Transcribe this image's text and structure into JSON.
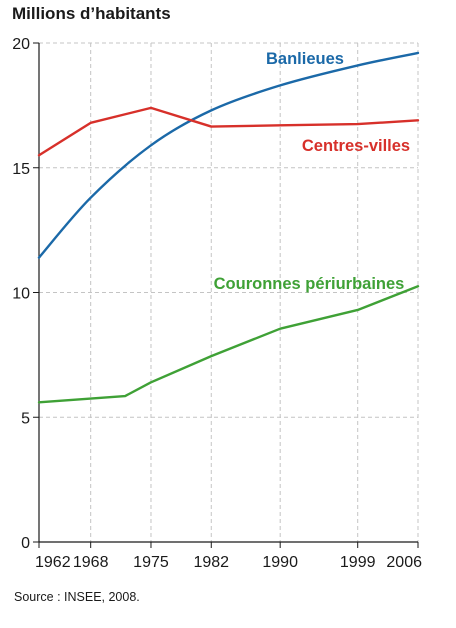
{
  "chart_data": {
    "type": "line",
    "ylabel": "Millions d’habitants",
    "source": "Source : INSEE, 2008.",
    "ylim": [
      0,
      20
    ],
    "yticks": [
      0,
      5,
      10,
      15,
      20
    ],
    "xticks": [
      1962,
      1968,
      1975,
      1982,
      1990,
      1999,
      2006
    ],
    "xlim": [
      1962,
      2006
    ],
    "grid": true,
    "series": [
      {
        "name": "Banlieues",
        "color": "#1b69a8",
        "x": [
          1962,
          1968,
          1975,
          1982,
          1990,
          1999,
          2006
        ],
        "y": [
          11.4,
          13.8,
          15.9,
          17.3,
          18.3,
          19.1,
          19.6
        ]
      },
      {
        "name": "Centres-villes",
        "color": "#d7302a",
        "x": [
          1962,
          1968,
          1975,
          1982,
          1990,
          1999,
          2006
        ],
        "y": [
          15.5,
          16.8,
          17.4,
          16.65,
          16.7,
          16.75,
          16.9
        ]
      },
      {
        "name": "Couronnes périurbaines",
        "color": "#3fa136",
        "x": [
          1962,
          1968,
          1972,
          1975,
          1982,
          1990,
          1999,
          2006
        ],
        "y": [
          5.6,
          5.75,
          5.85,
          6.4,
          7.45,
          8.55,
          9.3,
          10.25
        ]
      }
    ]
  }
}
